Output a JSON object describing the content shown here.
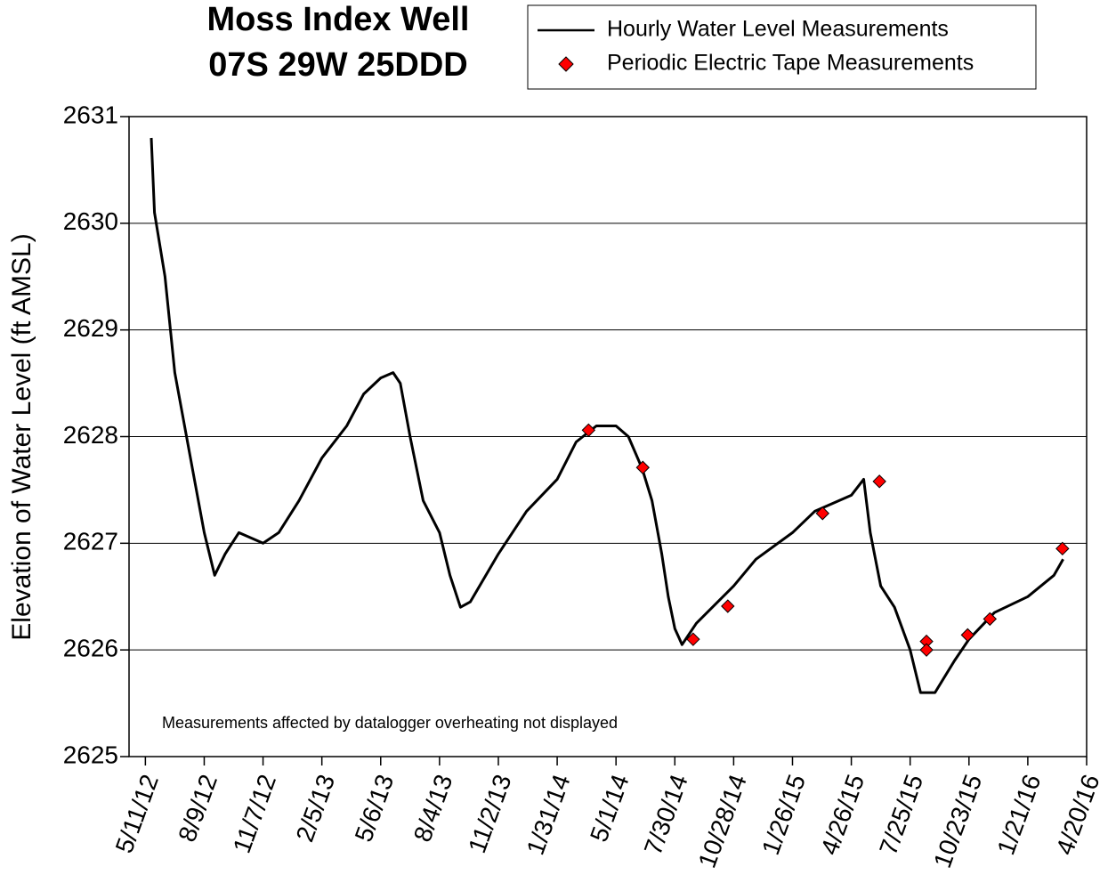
{
  "chart_data": {
    "type": "line",
    "title": "Moss Index Well",
    "subtitle": "07S 29W 25DDD",
    "y_label": "Elevation of Water Level (ft AMSL)",
    "annotation": "Measurements affected by datalogger overheating not displayed",
    "xlim": [
      "4/16/12",
      "4/20/16"
    ],
    "xticks": [
      "5/11/12",
      "8/9/12",
      "11/7/12",
      "2/5/13",
      "5/6/13",
      "8/4/13",
      "11/2/13",
      "1/31/14",
      "5/1/14",
      "7/30/14",
      "10/28/14",
      "1/26/15",
      "4/26/15",
      "7/25/15",
      "10/23/15",
      "1/21/16",
      "4/20/16"
    ],
    "ylim": [
      2625,
      2631
    ],
    "yticks": [
      2625,
      2626,
      2627,
      2628,
      2629,
      2630,
      2631
    ],
    "grid": true,
    "legend": "top-right",
    "series": [
      {
        "name": "Hourly Water Level Measurements",
        "color": "#000000",
        "mode": "line",
        "x": [
          "5/20/12",
          "5/25/12",
          "6/10/12",
          "6/25/12",
          "7/10/12",
          "7/25/12",
          "8/9/12",
          "8/25/12",
          "9/10/12",
          "10/1/12",
          "11/7/12",
          "12/1/12",
          "1/1/13",
          "2/5/13",
          "3/15/13",
          "4/10/13",
          "5/6/13",
          "5/25/13",
          "6/5/13",
          "6/20/13",
          "7/10/13",
          "8/4/13",
          "8/20/13",
          "9/5/13",
          "9/20/13",
          "11/2/13",
          "12/15/13",
          "1/31/14",
          "3/1/14",
          "4/1/14",
          "5/1/14",
          "5/20/14",
          "6/10/14",
          "6/25/14",
          "7/10/14",
          "7/20/14",
          "7/30/14",
          "8/10/14",
          "9/1/14",
          "10/28/14",
          "12/1/14",
          "1/26/15",
          "3/1/15",
          "4/26/15",
          "5/15/15",
          "5/25/15",
          "6/10/15",
          "7/1/15",
          "7/25/15",
          "8/10/15",
          "9/1/15",
          "10/1/15",
          "10/23/15",
          "12/1/15",
          "1/21/16",
          "3/1/16",
          "3/15/16"
        ],
        "values": [
          2630.8,
          2630.1,
          2629.5,
          2628.6,
          2628.1,
          2627.6,
          2627.1,
          2626.7,
          2626.9,
          2627.1,
          2627.0,
          2627.1,
          2627.4,
          2627.8,
          2628.1,
          2628.4,
          2628.55,
          2628.6,
          2628.5,
          2628.0,
          2627.4,
          2627.1,
          2626.7,
          2626.4,
          2626.45,
          2626.9,
          2627.3,
          2627.6,
          2627.95,
          2628.1,
          2628.1,
          2628.0,
          2627.7,
          2627.4,
          2626.9,
          2626.5,
          2626.2,
          2626.05,
          2626.25,
          2626.6,
          2626.85,
          2627.1,
          2627.3,
          2627.45,
          2627.6,
          2627.1,
          2626.6,
          2626.4,
          2626.0,
          2625.6,
          2625.6,
          2625.9,
          2626.1,
          2626.35,
          2626.5,
          2626.7,
          2626.85
        ]
      },
      {
        "name": "Periodic Electric Tape Measurements",
        "color": "#ff0000",
        "mode": "marker",
        "x": [
          "3/20/14",
          "6/11/14",
          "8/27/14",
          "10/19/14",
          "3/13/15",
          "6/8/15",
          "8/19/15",
          "8/19/15",
          "10/21/15",
          "11/24/15",
          "3/14/16"
        ],
        "values": [
          2628.06,
          2627.71,
          2626.1,
          2626.41,
          2627.28,
          2627.58,
          2626.08,
          2626.0,
          2626.14,
          2626.29,
          2626.95
        ]
      }
    ]
  }
}
